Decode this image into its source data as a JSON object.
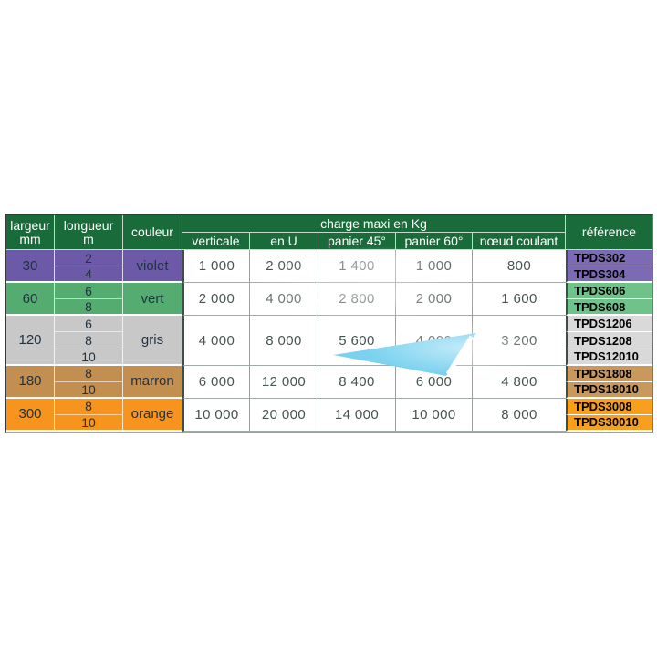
{
  "page": {
    "background": "#ffffff"
  },
  "colors": {
    "header_bg": "#1a6b3a",
    "header_text": "#ffffff",
    "value_text": "#46544f",
    "cell_text": "#213240",
    "reference_text": "#000000",
    "watermark_triangle": "#7bd2f0"
  },
  "table": {
    "headers": {
      "largeur_line1": "largeur",
      "largeur_line2": "mm",
      "longueur_line1": "longueur",
      "longueur_line2": "m",
      "couleur": "couleur",
      "charge_group": "charge maxi en Kg",
      "charge_cols": [
        "verticale",
        "en U",
        "panier 45°",
        "panier 60°",
        "nœud coulant"
      ],
      "reference": "référence"
    },
    "groups": [
      {
        "largeur": "30",
        "couleur": "violet",
        "color": "#6c59a8",
        "ref_color": "#7c6ab4",
        "longueurs": [
          "2",
          "4"
        ],
        "charges": [
          "1 000",
          "2 000",
          "1 400",
          "1 000",
          "800"
        ],
        "references": [
          "TPDS302",
          "TPDS304"
        ]
      },
      {
        "largeur": "60",
        "couleur": "vert",
        "color": "#55ac70",
        "ref_color": "#6fc289",
        "longueurs": [
          "6",
          "8"
        ],
        "charges": [
          "2 000",
          "4 000",
          "2 800",
          "2 000",
          "1 600"
        ],
        "references": [
          "TPDS606",
          "TPDS608"
        ]
      },
      {
        "largeur": "120",
        "couleur": "gris",
        "color": "#c8c8c8",
        "ref_color": "#d9d9d9",
        "longueurs": [
          "6",
          "8",
          "10"
        ],
        "charges": [
          "4 000",
          "8 000",
          "5 600",
          "4 000",
          "3 200"
        ],
        "references": [
          "TPDS1206",
          "TPDS1208",
          "TPDS12010"
        ]
      },
      {
        "largeur": "180",
        "couleur": "marron",
        "color": "#c28f50",
        "ref_color": "#c8985d",
        "longueurs": [
          "8",
          "10"
        ],
        "charges": [
          "6 000",
          "12 000",
          "8 400",
          "6 000",
          "4 800"
        ],
        "references": [
          "TPDS1808",
          "TPDS18010"
        ]
      },
      {
        "largeur": "300",
        "couleur": "orange",
        "color": "#f7941d",
        "ref_color": "#f8a01e",
        "longueurs": [
          "8",
          "10"
        ],
        "charges": [
          "10 000",
          "20 000",
          "14 000",
          "10 000",
          "8 000"
        ],
        "references": [
          "TPDS3008",
          "TPDS30010"
        ]
      }
    ]
  }
}
